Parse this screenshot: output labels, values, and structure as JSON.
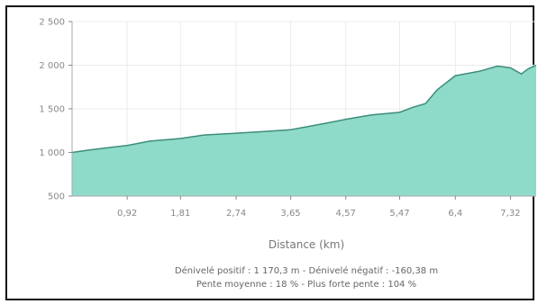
{
  "chart_data": {
    "type": "area",
    "title": "",
    "xlabel": "Distance (km)",
    "ylabel": "",
    "xlim": [
      0,
      7.75
    ],
    "ylim": [
      500,
      2500
    ],
    "yticks": [
      500,
      1000,
      1500,
      2000,
      2500
    ],
    "ytick_labels": [
      "500",
      "1 000",
      "1 500",
      "2 000",
      "2 500"
    ],
    "xticks": [
      0.92,
      1.81,
      2.74,
      3.65,
      4.57,
      5.47,
      6.4,
      7.32
    ],
    "xtick_labels": [
      "0,92",
      "1,81",
      "2,74",
      "3,65",
      "4,57",
      "5,47",
      "6,4",
      "7,32"
    ],
    "grid": true,
    "fill_color": "#8fdbc9",
    "line_color": "#3f8c7b",
    "x": [
      0,
      0.3,
      0.92,
      1.3,
      1.81,
      2.2,
      2.74,
      3.2,
      3.65,
      4.2,
      4.57,
      5.0,
      5.47,
      5.7,
      5.9,
      6.1,
      6.4,
      6.8,
      7.1,
      7.32,
      7.5,
      7.62,
      7.75
    ],
    "y": [
      1000,
      1030,
      1080,
      1130,
      1160,
      1200,
      1220,
      1240,
      1260,
      1330,
      1380,
      1430,
      1460,
      1520,
      1560,
      1720,
      1880,
      1930,
      1990,
      1970,
      1900,
      1960,
      2000
    ]
  },
  "footer": {
    "line1": "Dénivelé positif : 1 170,3 m - Dénivelé négatif : -160,38 m",
    "line2": "Pente moyenne : 18 % - Plus forte pente : 104 %"
  }
}
